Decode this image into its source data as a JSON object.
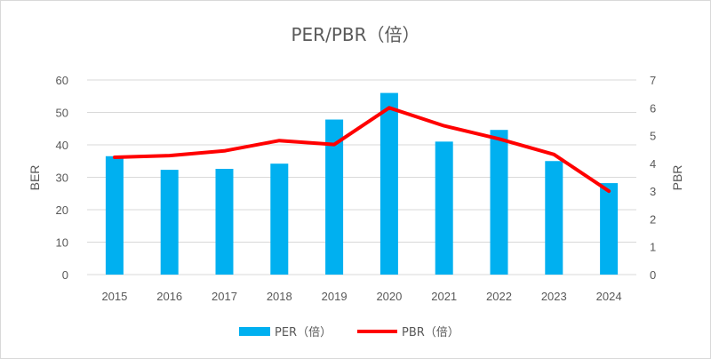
{
  "chart_data": {
    "type": "bar+line",
    "title": "PER/PBR（倍）",
    "categories": [
      "2015",
      "2016",
      "2017",
      "2018",
      "2019",
      "2020",
      "2021",
      "2022",
      "2023",
      "2024"
    ],
    "series": [
      {
        "name": "PER（倍）",
        "type": "bar",
        "axis": "left",
        "values": [
          36.5,
          32.3,
          32.6,
          34.2,
          47.8,
          56.0,
          41.0,
          44.6,
          35.0,
          28.2
        ],
        "color": "#00b0f0"
      },
      {
        "name": "PBR（倍）",
        "type": "line",
        "axis": "right",
        "values": [
          4.22,
          4.28,
          4.45,
          4.82,
          4.68,
          6.0,
          5.35,
          4.88,
          4.32,
          3.0
        ],
        "color": "#ff0000"
      }
    ],
    "ylabel_left": "BER",
    "ylabel_right": "PBR",
    "ylim_left": [
      0,
      60
    ],
    "ylim_right": [
      0,
      7
    ],
    "yticks_left": [
      0,
      10,
      20,
      30,
      40,
      50,
      60
    ],
    "yticks_right": [
      0,
      1,
      2,
      3,
      4,
      5,
      6,
      7
    ],
    "grid": true,
    "legend_position": "bottom"
  }
}
